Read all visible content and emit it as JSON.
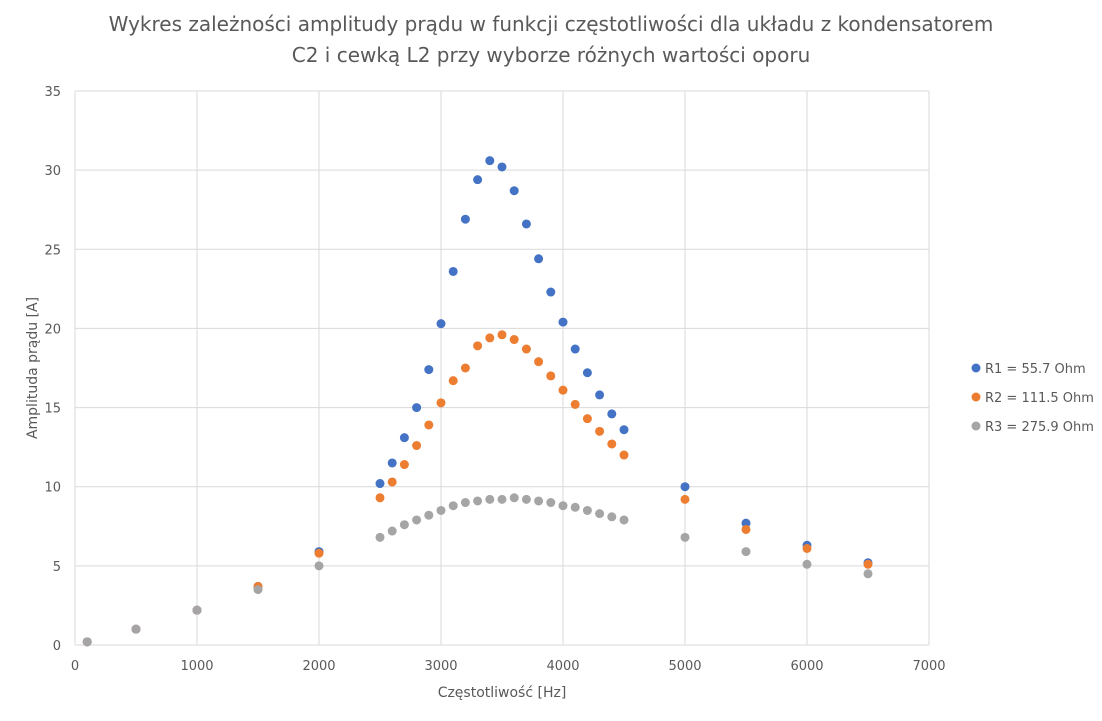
{
  "chart_data": {
    "type": "scatter",
    "title_lines": [
      "Wykres zależności amplitudy prądu w funkcji częstotliwości dla układu z kondensatorem",
      "C2 i cewką L2 przy wyborze różnych wartości oporu"
    ],
    "xlabel": "Częstotliwość [Hz]",
    "ylabel": "Amplituda prądu [A]",
    "xlim": [
      0,
      7000
    ],
    "ylim": [
      0,
      35
    ],
    "xticks": [
      "0",
      "1000",
      "2000",
      "3000",
      "4000",
      "5000",
      "6000",
      "7000"
    ],
    "yticks": [
      "0",
      "5",
      "10",
      "15",
      "20",
      "25",
      "30",
      "35"
    ],
    "grid": true,
    "legend_position": "right",
    "series": [
      {
        "name": "R1 = 55.7 Ohm",
        "color": "#4472c4",
        "points": [
          [
            100,
            0.2
          ],
          [
            500,
            1.0
          ],
          [
            1000,
            2.2
          ],
          [
            1500,
            3.7
          ],
          [
            2000,
            5.9
          ],
          [
            2500,
            10.2
          ],
          [
            2600,
            11.5
          ],
          [
            2700,
            13.1
          ],
          [
            2800,
            15.0
          ],
          [
            2900,
            17.4
          ],
          [
            3000,
            20.3
          ],
          [
            3100,
            23.6
          ],
          [
            3200,
            26.9
          ],
          [
            3300,
            29.4
          ],
          [
            3400,
            30.6
          ],
          [
            3500,
            30.2
          ],
          [
            3600,
            28.7
          ],
          [
            3700,
            26.6
          ],
          [
            3800,
            24.4
          ],
          [
            3900,
            22.3
          ],
          [
            4000,
            20.4
          ],
          [
            4100,
            18.7
          ],
          [
            4200,
            17.2
          ],
          [
            4300,
            15.8
          ],
          [
            4400,
            14.6
          ],
          [
            4500,
            13.6
          ],
          [
            5000,
            10.0
          ],
          [
            5500,
            7.7
          ],
          [
            6000,
            6.3
          ],
          [
            6500,
            5.2
          ]
        ]
      },
      {
        "name": "R2 = 111.5 Ohm",
        "color": "#ed7d31",
        "points": [
          [
            100,
            0.2
          ],
          [
            500,
            1.0
          ],
          [
            1000,
            2.2
          ],
          [
            1500,
            3.7
          ],
          [
            2000,
            5.8
          ],
          [
            2500,
            9.3
          ],
          [
            2600,
            10.3
          ],
          [
            2700,
            11.4
          ],
          [
            2800,
            12.6
          ],
          [
            2900,
            13.9
          ],
          [
            3000,
            15.3
          ],
          [
            3100,
            16.7
          ],
          [
            3200,
            17.5
          ],
          [
            3300,
            18.9
          ],
          [
            3400,
            19.4
          ],
          [
            3500,
            19.6
          ],
          [
            3600,
            19.3
          ],
          [
            3700,
            18.7
          ],
          [
            3800,
            17.9
          ],
          [
            3900,
            17.0
          ],
          [
            4000,
            16.1
          ],
          [
            4100,
            15.2
          ],
          [
            4200,
            14.3
          ],
          [
            4300,
            13.5
          ],
          [
            4400,
            12.7
          ],
          [
            4500,
            12.0
          ],
          [
            5000,
            9.2
          ],
          [
            5500,
            7.3
          ],
          [
            6000,
            6.1
          ],
          [
            6500,
            5.1
          ]
        ]
      },
      {
        "name": "R3 = 275.9 Ohm",
        "color": "#a5a5a5",
        "points": [
          [
            100,
            0.2
          ],
          [
            500,
            1.0
          ],
          [
            1000,
            2.2
          ],
          [
            1500,
            3.5
          ],
          [
            2000,
            5.0
          ],
          [
            2500,
            6.8
          ],
          [
            2600,
            7.2
          ],
          [
            2700,
            7.6
          ],
          [
            2800,
            7.9
          ],
          [
            2900,
            8.2
          ],
          [
            3000,
            8.5
          ],
          [
            3100,
            8.8
          ],
          [
            3200,
            9.0
          ],
          [
            3300,
            9.1
          ],
          [
            3400,
            9.2
          ],
          [
            3500,
            9.2
          ],
          [
            3600,
            9.3
          ],
          [
            3700,
            9.2
          ],
          [
            3800,
            9.1
          ],
          [
            3900,
            9.0
          ],
          [
            4000,
            8.8
          ],
          [
            4100,
            8.7
          ],
          [
            4200,
            8.5
          ],
          [
            4300,
            8.3
          ],
          [
            4400,
            8.1
          ],
          [
            4500,
            7.9
          ],
          [
            5000,
            6.8
          ],
          [
            5500,
            5.9
          ],
          [
            6000,
            5.1
          ],
          [
            6500,
            4.5
          ]
        ]
      }
    ]
  }
}
